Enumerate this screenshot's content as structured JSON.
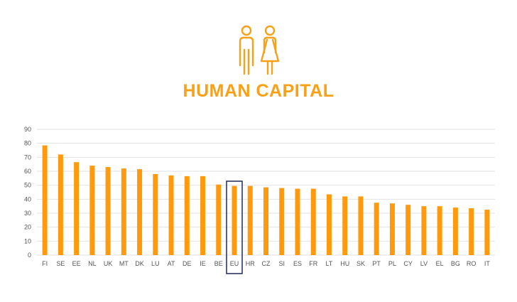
{
  "header": {
    "title": "HUMAN CAPITAL",
    "icon": "people-icon"
  },
  "colors": {
    "accent": "#f7a11a",
    "bar": "#ff9a0f",
    "highlight_border": "#1f2a5a",
    "grid": "#e2e2e2"
  },
  "chart_data": {
    "type": "bar",
    "title": "HUMAN CAPITAL",
    "xlabel": "",
    "ylabel": "",
    "ylim": [
      0,
      90
    ],
    "yticks": [
      0,
      10,
      20,
      30,
      40,
      50,
      60,
      70,
      80,
      90
    ],
    "grid": true,
    "highlight": "EU",
    "categories": [
      "FI",
      "SE",
      "EE",
      "NL",
      "UK",
      "MT",
      "DK",
      "LU",
      "AT",
      "DE",
      "IE",
      "BE",
      "EU",
      "HR",
      "CZ",
      "SI",
      "ES",
      "FR",
      "LT",
      "HU",
      "SK",
      "PT",
      "PL",
      "CY",
      "LV",
      "EL",
      "BG",
      "RO",
      "IT"
    ],
    "values": [
      78.5,
      72,
      66.5,
      64,
      63,
      62,
      61.5,
      58,
      57,
      56.5,
      56.5,
      50.5,
      49.5,
      49.5,
      48.5,
      48,
      47.5,
      47.5,
      43.5,
      42,
      42,
      37.5,
      37,
      36,
      35,
      35,
      34,
      33.5,
      32.5
    ]
  }
}
